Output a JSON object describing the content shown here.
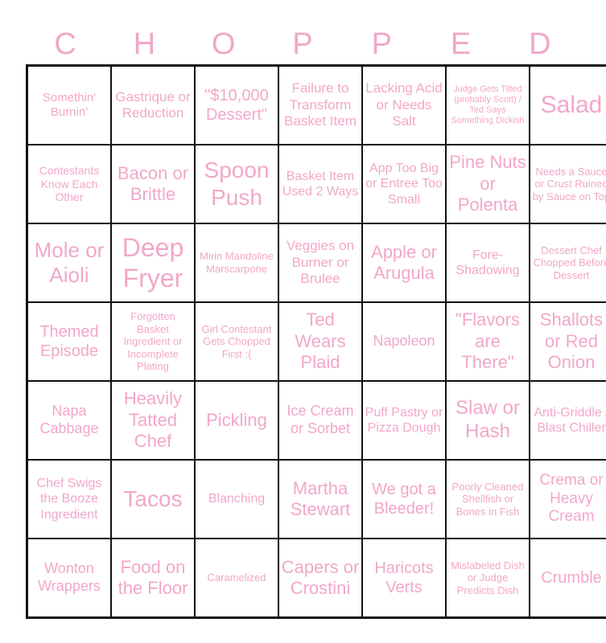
{
  "header": [
    "C",
    "H",
    "O",
    "P",
    "P",
    "E",
    "D"
  ],
  "text_color": "#f2a7c9",
  "rows": [
    [
      "Somethin' Burnin'",
      "Gastrique or Reduction",
      "\"$10,000 Dessert\"",
      "Failure to Transform Basket Item",
      "Lacking Acid or Needs Salt",
      "Judge Gets Tilted (probably Scott) / Ted Says Something Dickish",
      "Salad"
    ],
    [
      "Contestants Know Each Other",
      "Bacon or Brittle",
      "Spoon Push",
      "Basket Item Used 2 Ways",
      "App Too Big or Entree Too Small",
      "Pine Nuts or Polenta",
      "Needs a Sauce or Crust Ruined by Sauce on Top"
    ],
    [
      "Mole or Aioli",
      "Deep Fryer",
      "Mirin Mandoline Marscarpone",
      "Veggies on Burner or Brulee",
      "Apple or Arugula",
      "Fore-Shadowing",
      "Dessert Chef Chopped Before Dessert"
    ],
    [
      "Themed Episode",
      "Forgotten Basket Ingredient or Incomplete Plating",
      "Girl Contestant Gets Chopped First :(",
      "Ted Wears Plaid",
      "Napoleon",
      "\"Flavors are There\"",
      "Shallots or Red Onion"
    ],
    [
      "Napa Cabbage",
      "Heavily Tatted Chef",
      "Pickling",
      "Ice Cream or Sorbet",
      "Puff Pastry or Pizza Dough",
      "Slaw or Hash",
      "Anti-Griddle / Blast Chiller"
    ],
    [
      "Chef Swigs the Booze Ingredient",
      "Tacos",
      "Blanching",
      "Martha Stewart",
      "We got a Bleeder!",
      "Poorly Cleaned Shellfish or Bones in Fish",
      "Crema or Heavy Cream"
    ],
    [
      "Wonton Wrappers",
      "Food on the Floor",
      "Caramelized",
      "Capers or Crostini",
      "Haricots Verts",
      "Mislabeled Dish or Judge Predicts Dish",
      "Crumble"
    ]
  ]
}
